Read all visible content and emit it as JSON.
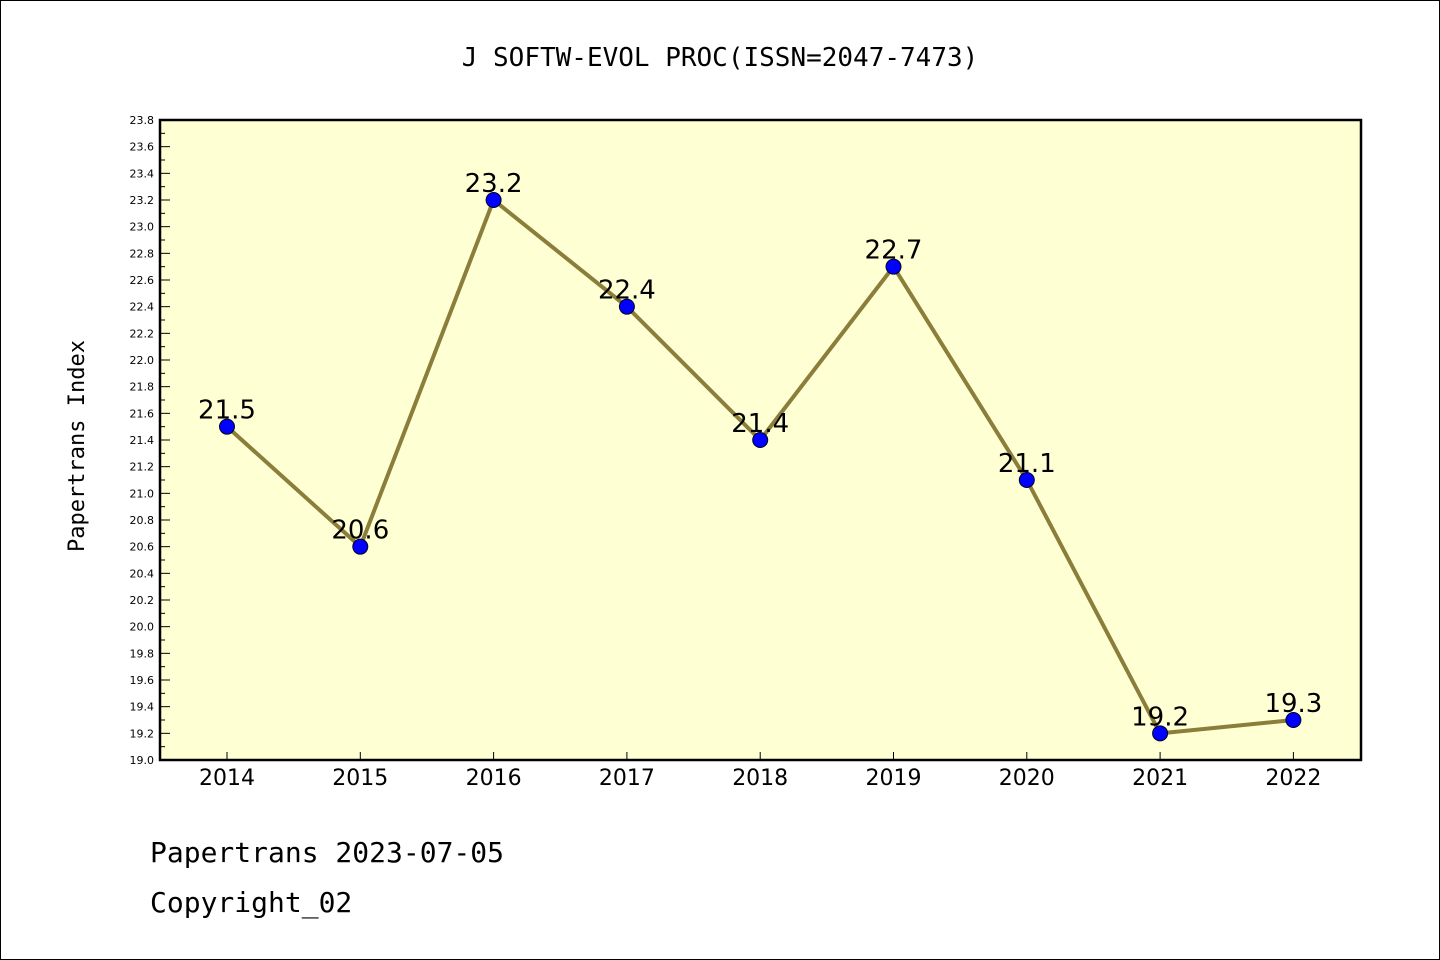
{
  "chart_data": {
    "type": "line",
    "title": "J SOFTW-EVOL PROC(ISSN=2047-7473)",
    "xlabel": "",
    "ylabel": "Papertrans Index",
    "categories": [
      "2014",
      "2015",
      "2016",
      "2017",
      "2018",
      "2019",
      "2020",
      "2021",
      "2022"
    ],
    "values": [
      21.5,
      20.6,
      23.2,
      22.4,
      21.4,
      22.7,
      21.1,
      19.2,
      19.3
    ],
    "data_labels": [
      "21.5",
      "20.6",
      "23.2",
      "22.4",
      "21.4",
      "22.7",
      "21.1",
      "19.2",
      "19.3"
    ],
    "ylim": [
      19.0,
      23.8
    ],
    "y_tick_labels": [
      "19.0",
      "19.2",
      "19.4",
      "19.6",
      "19.8",
      "20.0",
      "20.2",
      "20.4",
      "20.6",
      "20.8",
      "21.0",
      "21.2",
      "21.4",
      "21.6",
      "21.8",
      "22.0",
      "22.2",
      "22.4",
      "22.6",
      "22.8",
      "23.0",
      "23.2",
      "23.4",
      "23.6",
      "23.8"
    ],
    "grid": false,
    "legend": "none",
    "colors": {
      "plot_background": "#ffffd4",
      "line": "#8b7d3a",
      "marker": "#0000ff"
    }
  },
  "footer": {
    "date_line": "Papertrans 2023-07-05",
    "copyright_line": "Copyright_02"
  }
}
